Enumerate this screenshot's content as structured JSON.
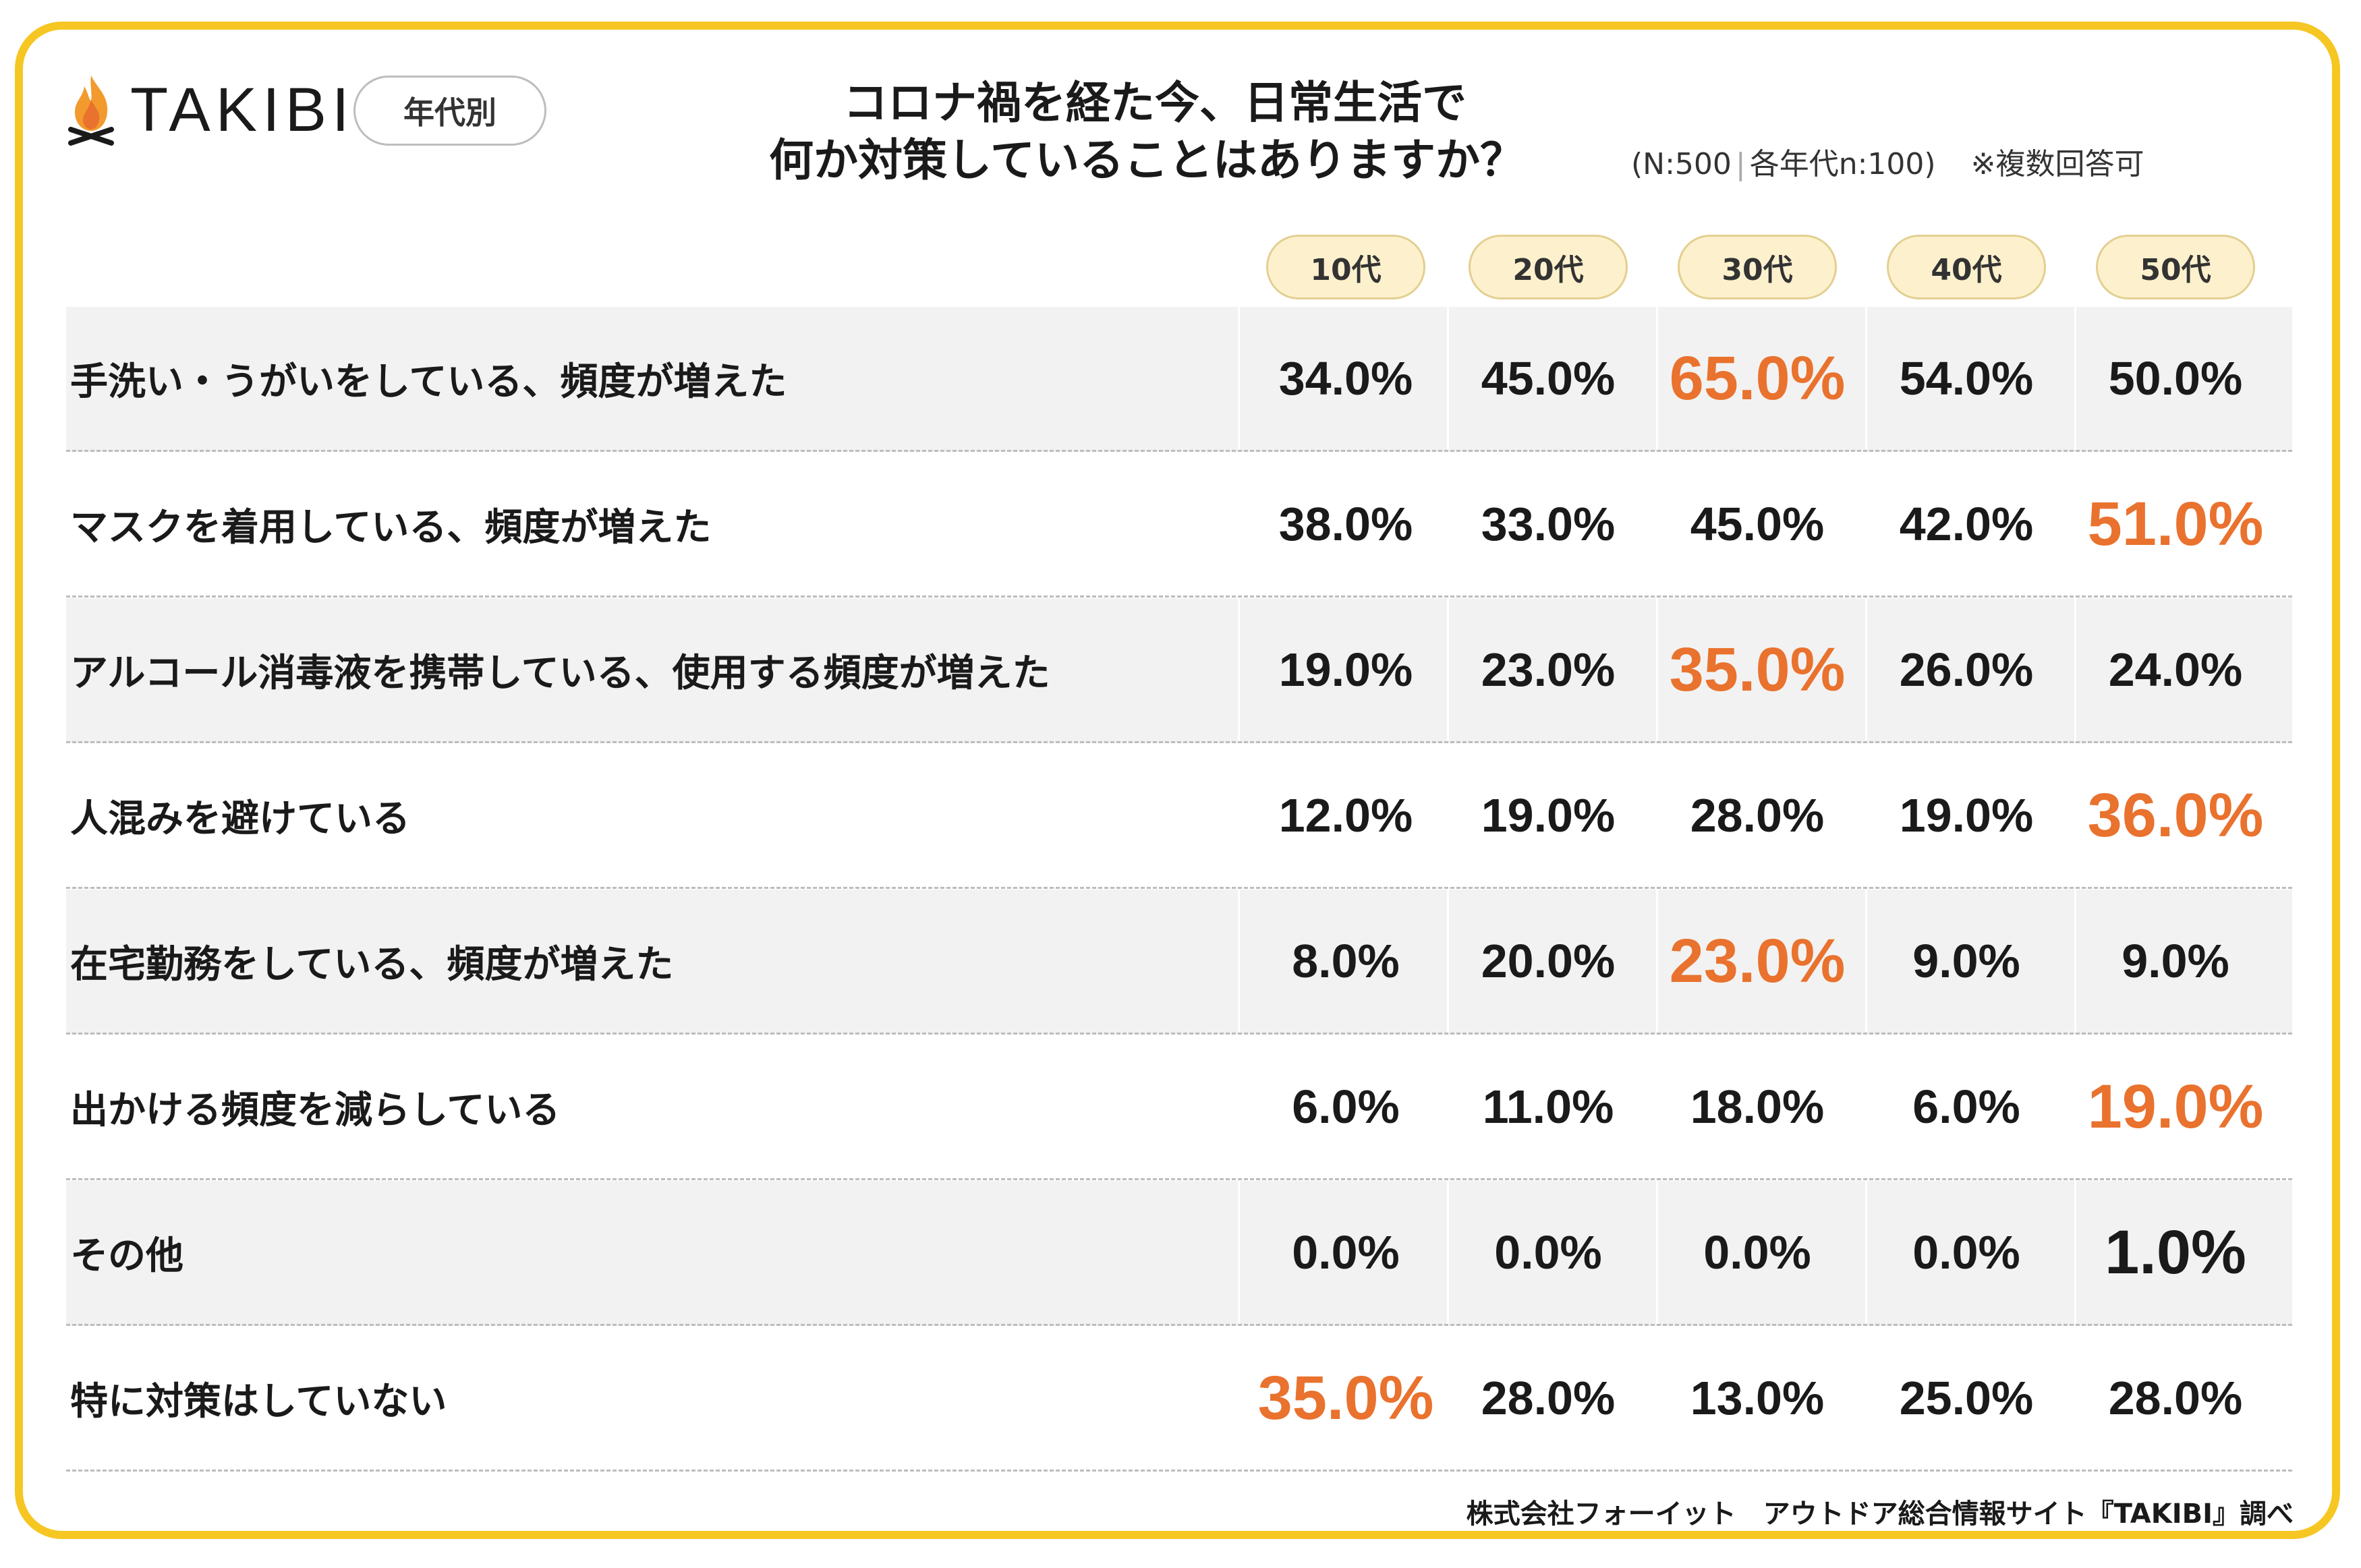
{
  "brand": {
    "logo_text": "TAKIBI",
    "logo_icon": "campfire-icon",
    "accent": "#f6c623",
    "highlight": "#e9722e"
  },
  "tag": "年代別",
  "title": {
    "line1": "コロナ禍を経た今、日常生活で",
    "line2": "何か対策していることはありますか？"
  },
  "note": {
    "sample": "(N:500",
    "per_group": "各年代n:100)",
    "multi": "※複数回答可"
  },
  "footer": "株式会社フォーイット　アウトドア総合情報サイト『TAKIBI』調べ",
  "chart_data": {
    "type": "table",
    "columns": [
      "10代",
      "20代",
      "30代",
      "40代",
      "50代"
    ],
    "rows": [
      {
        "label": "手洗い・うがいをしている、頻度が増えた",
        "cells": [
          "34.0%",
          "45.0%",
          "65.0%",
          "54.0%",
          "50.0%"
        ],
        "values": [
          34.0,
          45.0,
          65.0,
          54.0,
          50.0
        ],
        "highlight": 2,
        "highlight_color": "orange"
      },
      {
        "label": "マスクを着用している、頻度が増えた",
        "cells": [
          "38.0%",
          "33.0%",
          "45.0%",
          "42.0%",
          "51.0%"
        ],
        "values": [
          38.0,
          33.0,
          45.0,
          42.0,
          51.0
        ],
        "highlight": 4,
        "highlight_color": "orange"
      },
      {
        "label": "アルコール消毒液を携帯している、使用する頻度が増えた",
        "cells": [
          "19.0%",
          "23.0%",
          "35.0%",
          "26.0%",
          "24.0%"
        ],
        "values": [
          19.0,
          23.0,
          35.0,
          26.0,
          24.0
        ],
        "highlight": 2,
        "highlight_color": "orange"
      },
      {
        "label": "人混みを避けている",
        "cells": [
          "12.0%",
          "19.0%",
          "28.0%",
          "19.0%",
          "36.0%"
        ],
        "values": [
          12.0,
          19.0,
          28.0,
          19.0,
          36.0
        ],
        "highlight": 4,
        "highlight_color": "orange"
      },
      {
        "label": "在宅勤務をしている、頻度が増えた",
        "cells": [
          "8.0%",
          "20.0%",
          "23.0%",
          "9.0%",
          "9.0%"
        ],
        "values": [
          8.0,
          20.0,
          23.0,
          9.0,
          9.0
        ],
        "highlight": 2,
        "highlight_color": "orange"
      },
      {
        "label": "出かける頻度を減らしている",
        "cells": [
          "6.0%",
          "11.0%",
          "18.0%",
          "6.0%",
          "19.0%"
        ],
        "values": [
          6.0,
          11.0,
          18.0,
          6.0,
          19.0
        ],
        "highlight": 4,
        "highlight_color": "orange"
      },
      {
        "label": "その他",
        "cells": [
          "0.0%",
          "0.0%",
          "0.0%",
          "0.0%",
          "1.0%"
        ],
        "values": [
          0.0,
          0.0,
          0.0,
          0.0,
          1.0
        ],
        "highlight": 4,
        "highlight_color": "black"
      },
      {
        "label": "特に対策はしていない",
        "cells": [
          "35.0%",
          "28.0%",
          "13.0%",
          "25.0%",
          "28.0%"
        ],
        "values": [
          35.0,
          28.0,
          13.0,
          25.0,
          28.0
        ],
        "highlight": 0,
        "highlight_color": "orange"
      }
    ]
  }
}
